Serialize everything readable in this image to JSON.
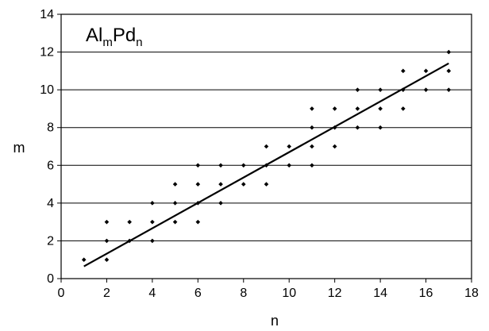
{
  "chart_data": {
    "type": "scatter",
    "title": "",
    "xlabel": "n",
    "ylabel": "m",
    "xlim": [
      0,
      18
    ],
    "ylim": [
      0,
      14
    ],
    "xticks": [
      0,
      2,
      4,
      6,
      8,
      10,
      12,
      14,
      16,
      18
    ],
    "yticks": [
      0,
      2,
      4,
      6,
      8,
      10,
      12,
      14
    ],
    "grid": "horizontal",
    "legend_label": {
      "base": "Al",
      "sub1": "m",
      "mid": "Pd",
      "sub2": "n"
    },
    "legend_position": "top-left",
    "points": [
      {
        "x": 1,
        "y": 1
      },
      {
        "x": 2,
        "y": 1
      },
      {
        "x": 2,
        "y": 2
      },
      {
        "x": 2,
        "y": 3
      },
      {
        "x": 3,
        "y": 2
      },
      {
        "x": 3,
        "y": 3
      },
      {
        "x": 4,
        "y": 2
      },
      {
        "x": 4,
        "y": 3
      },
      {
        "x": 4,
        "y": 4
      },
      {
        "x": 5,
        "y": 3
      },
      {
        "x": 5,
        "y": 4
      },
      {
        "x": 5,
        "y": 5
      },
      {
        "x": 6,
        "y": 3
      },
      {
        "x": 6,
        "y": 4
      },
      {
        "x": 6,
        "y": 5
      },
      {
        "x": 6,
        "y": 6
      },
      {
        "x": 7,
        "y": 4
      },
      {
        "x": 7,
        "y": 5
      },
      {
        "x": 7,
        "y": 6
      },
      {
        "x": 8,
        "y": 5
      },
      {
        "x": 8,
        "y": 6
      },
      {
        "x": 9,
        "y": 5
      },
      {
        "x": 9,
        "y": 6
      },
      {
        "x": 9,
        "y": 7
      },
      {
        "x": 10,
        "y": 6
      },
      {
        "x": 10,
        "y": 7
      },
      {
        "x": 11,
        "y": 6
      },
      {
        "x": 11,
        "y": 7
      },
      {
        "x": 11,
        "y": 8
      },
      {
        "x": 11,
        "y": 9
      },
      {
        "x": 12,
        "y": 7
      },
      {
        "x": 12,
        "y": 8
      },
      {
        "x": 12,
        "y": 9
      },
      {
        "x": 13,
        "y": 8
      },
      {
        "x": 13,
        "y": 9
      },
      {
        "x": 13,
        "y": 10
      },
      {
        "x": 14,
        "y": 8
      },
      {
        "x": 14,
        "y": 9
      },
      {
        "x": 14,
        "y": 10
      },
      {
        "x": 15,
        "y": 9
      },
      {
        "x": 15,
        "y": 10
      },
      {
        "x": 15,
        "y": 11
      },
      {
        "x": 16,
        "y": 10
      },
      {
        "x": 16,
        "y": 11
      },
      {
        "x": 17,
        "y": 10
      },
      {
        "x": 17,
        "y": 11
      },
      {
        "x": 17,
        "y": 12
      }
    ],
    "fit_line": {
      "x": [
        1,
        17
      ],
      "y": [
        0.65,
        11.4
      ]
    },
    "colors": {
      "marker": "#000000",
      "line": "#000000",
      "grid": "#000000",
      "background": "#ffffff"
    }
  }
}
